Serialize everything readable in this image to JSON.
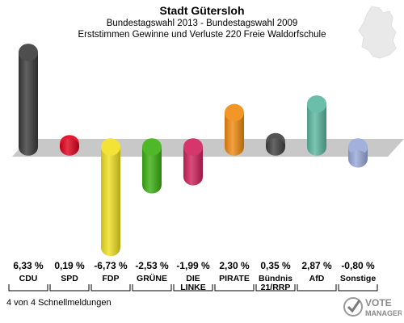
{
  "header": {
    "title": "Stadt Gütersloh",
    "subtitle": "Bundestagswahl 2013 - Bundestagswahl 2009",
    "subtitle2": "Erststimmen Gewinne und Verluste 220 Freie Waldorfschule"
  },
  "footer": {
    "text": "4 von 4 Schnellmeldungen"
  },
  "logo": {
    "text1": "VOTE",
    "text2": "MANAGER"
  },
  "colors": {
    "background": "#ffffff",
    "baseline_band": "#c8c8c8"
  },
  "chart_data": {
    "type": "bar",
    "categories": [
      "CDU",
      "SPD",
      "FDP",
      "GRÜNE",
      "DIE LINKE",
      "PIRATE",
      "Bündnis 21/RRP",
      "AfD",
      "Sonstige"
    ],
    "value_labels": [
      "6,33 %",
      "0,19 %",
      "-6,73 %",
      "-2,53 %",
      "-1,99 %",
      "2,30 %",
      "0,35 %",
      "2,87 %",
      "-0,80 %"
    ],
    "series": [
      {
        "values": [
          6.33,
          0.19,
          -6.73,
          -2.53,
          -1.99,
          2.3,
          0.35,
          2.87,
          -0.8
        ],
        "colors": [
          "#3a3a3a",
          "#e0001a",
          "#f0e020",
          "#3ab010",
          "#d0205a",
          "#f08a10",
          "#404040",
          "#5ab8a0",
          "#98a8d8"
        ]
      }
    ],
    "ylim": [
      -7.5,
      7.0
    ]
  }
}
